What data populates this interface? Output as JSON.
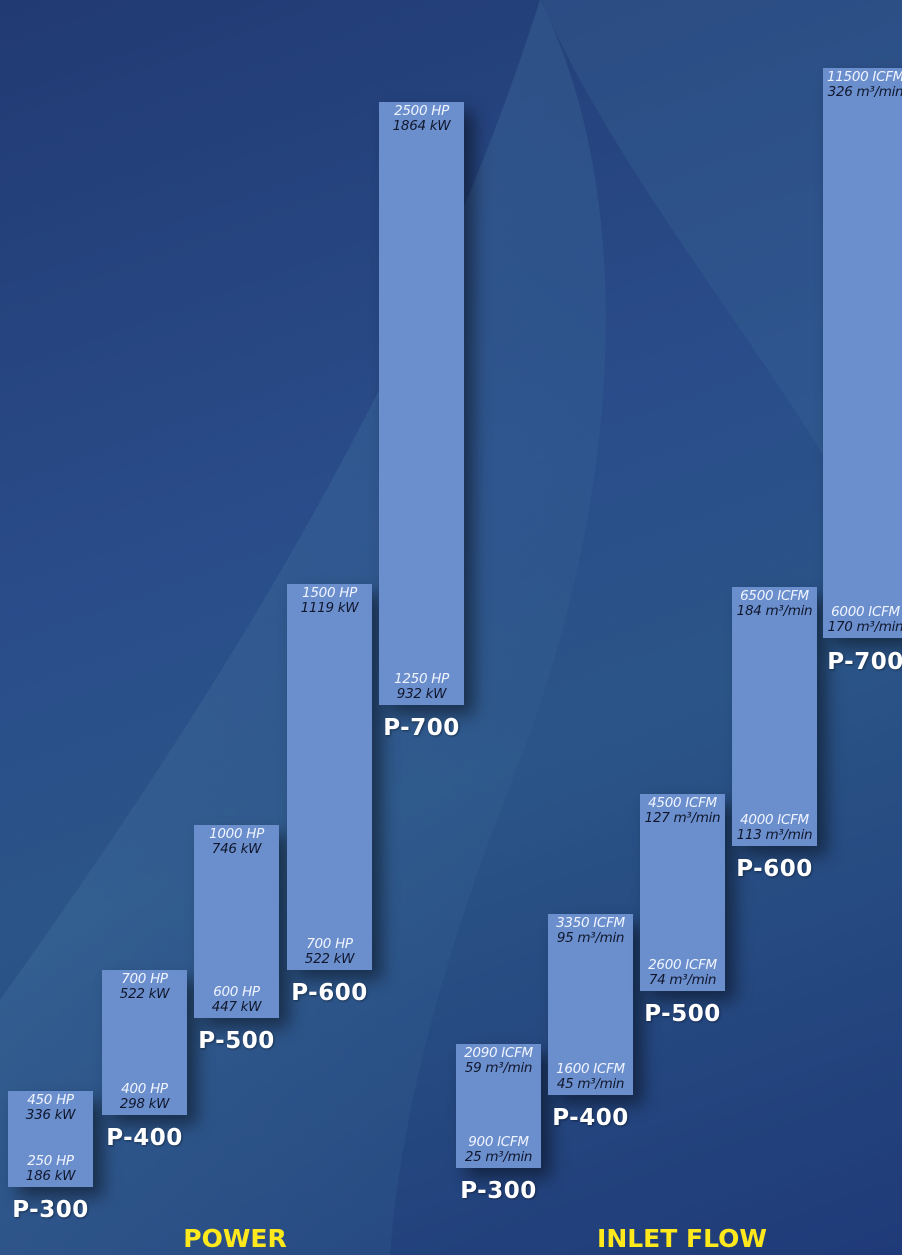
{
  "colors": {
    "bar": "#6b8fcd",
    "label_title": "#ffe81c",
    "model_label": "#ffffff"
  },
  "chart_data": [
    {
      "type": "range-bar",
      "title": "POWER",
      "categories": [
        "P-300",
        "P-400",
        "P-500",
        "P-600",
        "P-700"
      ],
      "ranges": [
        {
          "name": "P-300",
          "min_hp": 250,
          "max_hp": 450,
          "min_kw": 186,
          "max_kw": 336,
          "min_label": [
            "250 HP",
            "186 kW"
          ],
          "max_label": [
            "450 HP",
            "336 kW"
          ]
        },
        {
          "name": "P-400",
          "min_hp": 400,
          "max_hp": 700,
          "min_kw": 298,
          "max_kw": 522,
          "min_label": [
            "400 HP",
            "298 kW"
          ],
          "max_label": [
            "700 HP",
            "522 kW"
          ]
        },
        {
          "name": "P-500",
          "min_hp": 600,
          "max_hp": 1000,
          "min_kw": 447,
          "max_kw": 746,
          "min_label": [
            "600 HP",
            "447 kW"
          ],
          "max_label": [
            "1000 HP",
            "746 kW"
          ]
        },
        {
          "name": "P-600",
          "min_hp": 700,
          "max_hp": 1500,
          "min_kw": 522,
          "max_kw": 1119,
          "min_label": [
            "700 HP",
            "522 kW"
          ],
          "max_label": [
            "1500 HP",
            "1119 kW"
          ]
        },
        {
          "name": "P-700",
          "min_hp": 1250,
          "max_hp": 2500,
          "min_kw": 932,
          "max_kw": 1864,
          "min_label": [
            "1250 HP",
            "932 kW"
          ],
          "max_label": [
            "2500 HP",
            "1864 kW"
          ]
        }
      ]
    },
    {
      "type": "range-bar",
      "title": "INLET FLOW",
      "categories": [
        "P-300",
        "P-400",
        "P-500",
        "P-600",
        "P-700"
      ],
      "ranges": [
        {
          "name": "P-300",
          "min_icfm": 900,
          "max_icfm": 2090,
          "min_m3": 25,
          "max_m3": 59,
          "min_label": [
            "900 ICFM",
            "25 m³/min"
          ],
          "max_label": [
            "2090 ICFM",
            "59 m³/min"
          ]
        },
        {
          "name": "P-400",
          "min_icfm": 1600,
          "max_icfm": 3350,
          "min_m3": 45,
          "max_m3": 95,
          "min_label": [
            "1600 ICFM",
            "45 m³/min"
          ],
          "max_label": [
            "3350 ICFM",
            "95 m³/min"
          ]
        },
        {
          "name": "P-500",
          "min_icfm": 2600,
          "max_icfm": 4500,
          "min_m3": 74,
          "max_m3": 127,
          "min_label": [
            "2600 ICFM",
            "74 m³/min"
          ],
          "max_label": [
            "4500 ICFM",
            "127 m³/min"
          ]
        },
        {
          "name": "P-600",
          "min_icfm": 4000,
          "max_icfm": 6500,
          "min_m3": 113,
          "max_m3": 184,
          "min_label": [
            "4000 ICFM",
            "113 m³/min"
          ],
          "max_label": [
            "6500 ICFM",
            "184 m³/min"
          ]
        },
        {
          "name": "P-700",
          "min_icfm": 6000,
          "max_icfm": 11500,
          "min_m3": 170,
          "max_m3": 326,
          "min_label": [
            "6000 ICFM",
            "170 m³/min"
          ],
          "max_label": [
            "11500 ICFM",
            "326 m³/min"
          ]
        }
      ]
    }
  ]
}
